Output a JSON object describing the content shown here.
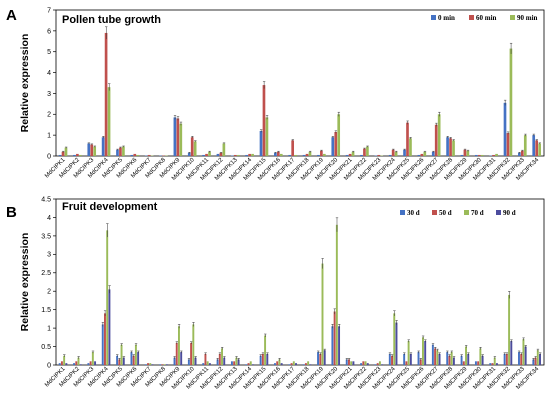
{
  "chart_data": [
    {
      "type": "bar",
      "panel": "A",
      "title": "Pollen tube growth",
      "xlabel": "",
      "ylabel": "Relative expression",
      "ylim": [
        0,
        7
      ],
      "yticks": [
        0,
        1,
        2,
        3,
        4,
        5,
        6,
        7
      ],
      "legend_position": "top-right",
      "grid": false,
      "categories": [
        "MdCIPK1",
        "MdCIPK2",
        "MdCIPK3",
        "MdCIPK4",
        "MdCIPK5",
        "MdCIPK6",
        "MdCIPK7",
        "MdCIPK8",
        "MdCIPK9",
        "MdCIPK10",
        "MdCIPK11",
        "MdCIPK12",
        "MdCIPK13",
        "MdCIPK14",
        "MdCIPK15",
        "MdCIPK16",
        "MdCIPK17",
        "MdCIPK18",
        "MdCIPK19",
        "MdCIPK20",
        "MdCIPK21",
        "MdCIPK22",
        "MdCIPK23",
        "MdCIPK24",
        "MdCIPK25",
        "MdCIPK26",
        "MdCIPK27",
        "MdCIPK28",
        "MdCIPK29",
        "MdCIPK30",
        "MdCIPK31",
        "MdCIPK32",
        "MdCIPK33",
        "MdCIPK34"
      ],
      "series": [
        {
          "name": "0 min",
          "color": "#4472c4",
          "values": [
            0.05,
            0.05,
            0.6,
            0.9,
            0.3,
            0.05,
            0.02,
            0.02,
            1.85,
            0.15,
            0.05,
            0.1,
            0.02,
            0.05,
            1.2,
            0.15,
            0.05,
            0.05,
            0.05,
            0.9,
            0.05,
            0.05,
            0.02,
            0.05,
            0.3,
            0.05,
            0.2,
            0.9,
            0.05,
            0.05,
            0.02,
            2.55,
            0.15,
            1.0
          ]
        },
        {
          "name": "60 min",
          "color": "#c0504d",
          "values": [
            0.2,
            0.1,
            0.55,
            5.9,
            0.4,
            0.1,
            0.05,
            0.02,
            1.8,
            0.9,
            0.1,
            0.15,
            0.05,
            0.1,
            3.4,
            0.2,
            0.75,
            0.1,
            0.25,
            1.15,
            0.1,
            0.35,
            0.05,
            0.3,
            1.6,
            0.1,
            1.5,
            0.85,
            0.3,
            0.05,
            0.05,
            1.1,
            0.25,
            0.75
          ]
        },
        {
          "name": "90 min",
          "color": "#9bbb59",
          "values": [
            0.4,
            0.05,
            0.45,
            3.3,
            0.45,
            0.05,
            0.02,
            0.02,
            1.55,
            0.7,
            0.2,
            0.6,
            0.05,
            0.1,
            1.85,
            0.1,
            0.05,
            0.2,
            0.1,
            2.0,
            0.2,
            0.45,
            0.02,
            0.2,
            0.85,
            0.2,
            2.0,
            0.75,
            0.25,
            0.05,
            0.1,
            5.15,
            1.0,
            0.6
          ]
        }
      ]
    },
    {
      "type": "bar",
      "panel": "B",
      "title": "Fruit development",
      "xlabel": "",
      "ylabel": "Relative expression",
      "ylim": [
        0,
        4.5
      ],
      "yticks": [
        0,
        0.5,
        1,
        1.5,
        2,
        2.5,
        3,
        3.5,
        4,
        4.5
      ],
      "legend_position": "top-right",
      "grid": false,
      "categories": [
        "MdCIPK1",
        "MdCIPK2",
        "MdCIPK3",
        "MdCIPK4",
        "MdCIPK5",
        "MdCIPK6",
        "MdCIPK7",
        "MdCIPK8",
        "MdCIPK9",
        "MdCIPK10",
        "MdCIPK11",
        "MdCIPK12",
        "MdCIPK13",
        "MdCIPK14",
        "MdCIPK15",
        "MdCIPK16",
        "MdCIPK17",
        "MdCIPK18",
        "MdCIPK19",
        "MdCIPK20",
        "MdCIPK21",
        "MdCIPK22",
        "MdCIPK23",
        "MdCIPK24",
        "MdCIPK25",
        "MdCIPK26",
        "MdCIPK27",
        "MdCIPK28",
        "MdCIPK29",
        "MdCIPK30",
        "MdCIPK31",
        "MdCIPK32",
        "MdCIPK33",
        "MdCIPK34"
      ],
      "series": [
        {
          "name": "30 d",
          "color": "#4472c4",
          "values": [
            0.05,
            0.05,
            0.05,
            1.1,
            0.25,
            0.35,
            0.02,
            0.02,
            0.2,
            0.15,
            0.05,
            0.15,
            0.1,
            0.02,
            0.25,
            0.05,
            0.02,
            0.02,
            0.35,
            1.05,
            0.15,
            0.05,
            0.02,
            0.3,
            0.3,
            0.35,
            0.55,
            0.35,
            0.25,
            0.1,
            0.05,
            0.3,
            0.35,
            0.15
          ]
        },
        {
          "name": "50 d",
          "color": "#c0504d",
          "values": [
            0.1,
            0.1,
            0.1,
            1.4,
            0.15,
            0.25,
            0.05,
            0.02,
            0.6,
            0.6,
            0.3,
            0.3,
            0.1,
            0.05,
            0.3,
            0.1,
            0.05,
            0.05,
            0.3,
            1.45,
            0.15,
            0.1,
            0.05,
            0.25,
            0.1,
            0.15,
            0.45,
            0.25,
            0.1,
            0.1,
            0.05,
            0.3,
            0.3,
            0.2
          ]
        },
        {
          "name": "70 d",
          "color": "#9bbb59",
          "values": [
            0.25,
            0.2,
            0.35,
            3.65,
            0.55,
            0.55,
            0.05,
            0.02,
            1.05,
            1.1,
            0.1,
            0.45,
            0.2,
            0.1,
            0.8,
            0.15,
            0.1,
            0.1,
            2.75,
            3.8,
            0.1,
            0.1,
            0.1,
            1.4,
            0.65,
            0.75,
            0.4,
            0.35,
            0.5,
            0.45,
            0.2,
            1.9,
            0.7,
            0.4
          ]
        },
        {
          "name": "90 d",
          "color": "#4c4c9e",
          "values": [
            0.05,
            0.02,
            0.1,
            2.05,
            0.2,
            0.35,
            0.02,
            0.02,
            0.35,
            0.2,
            0.05,
            0.2,
            0.15,
            0.02,
            0.3,
            0.05,
            0.05,
            0.02,
            0.4,
            1.05,
            0.1,
            0.05,
            0.02,
            1.15,
            0.3,
            0.65,
            0.3,
            0.2,
            0.3,
            0.25,
            0.05,
            0.65,
            0.5,
            0.3
          ]
        }
      ]
    }
  ]
}
